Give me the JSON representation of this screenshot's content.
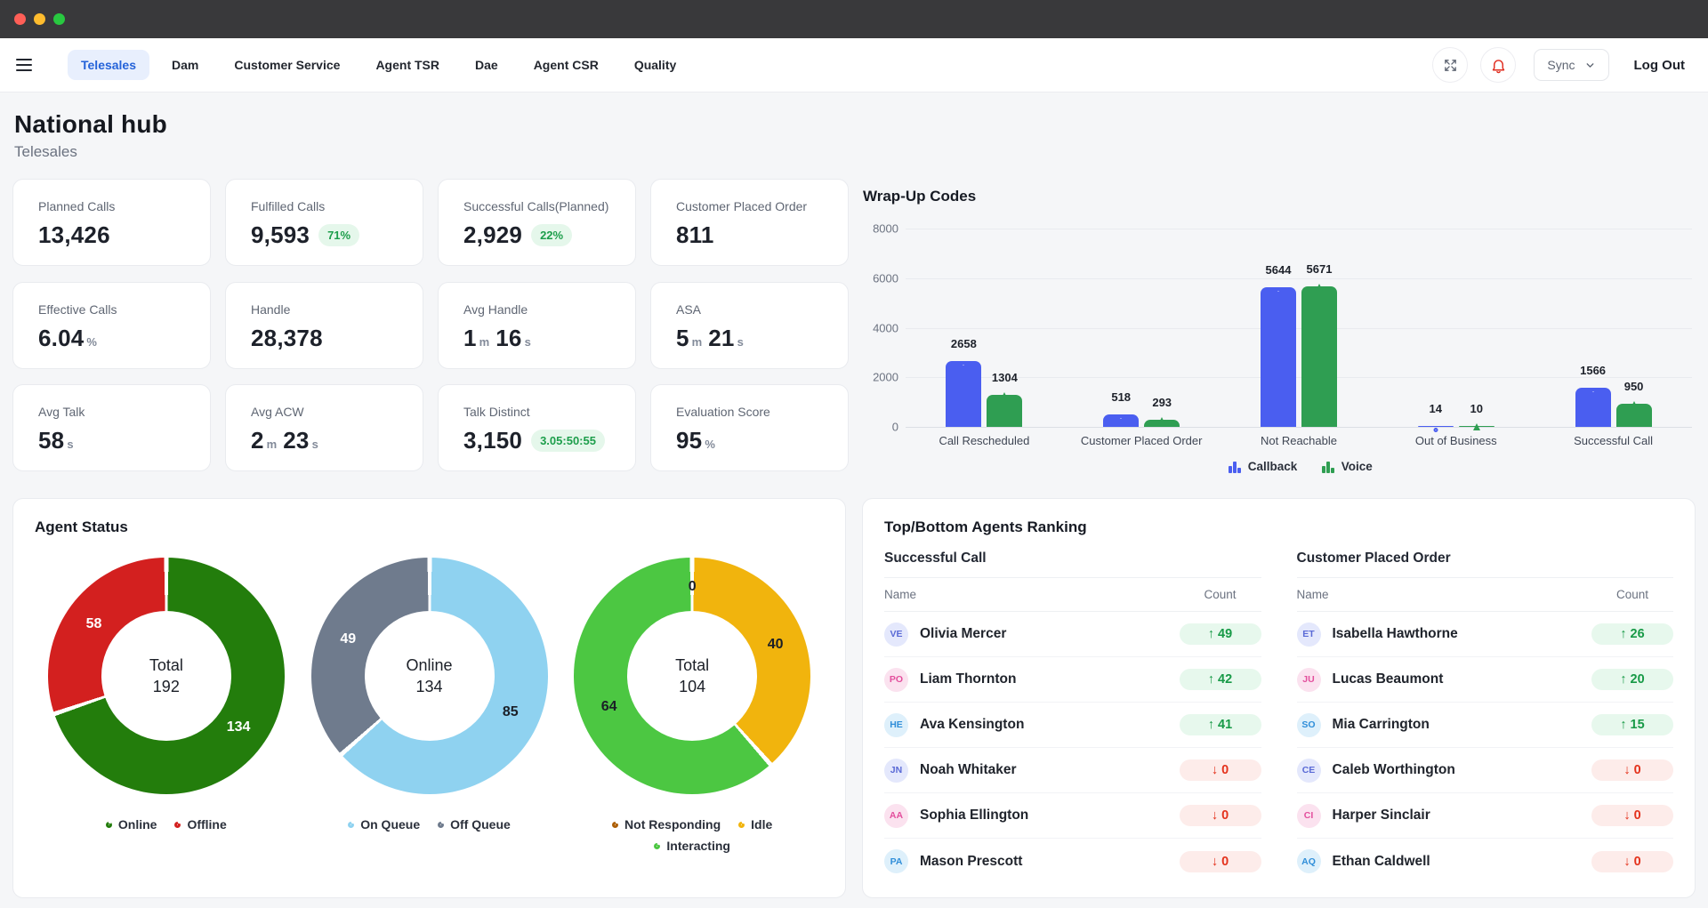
{
  "window": {
    "traffic_lights": [
      "#ff5f57",
      "#febc2e",
      "#28c840"
    ]
  },
  "nav": {
    "tabs": [
      {
        "label": "Telesales",
        "active": true
      },
      {
        "label": "Dam",
        "active": false
      },
      {
        "label": "Customer Service",
        "active": false
      },
      {
        "label": "Agent TSR",
        "active": false
      },
      {
        "label": "Dae",
        "active": false
      },
      {
        "label": "Agent CSR",
        "active": false
      },
      {
        "label": "Quality",
        "active": false
      }
    ],
    "sync_label": "Sync",
    "logout_label": "Log Out"
  },
  "header": {
    "title": "National hub",
    "subtitle": "Telesales"
  },
  "kpis": [
    {
      "label": "Planned Calls",
      "parts": [
        {
          "t": "13,426",
          "u": false
        }
      ],
      "badge": null
    },
    {
      "label": "Fulfilled Calls",
      "parts": [
        {
          "t": "9,593",
          "u": false
        }
      ],
      "badge": "71%"
    },
    {
      "label": "Successful Calls(Planned)",
      "parts": [
        {
          "t": "2,929",
          "u": false
        }
      ],
      "badge": "22%"
    },
    {
      "label": "Customer Placed Order",
      "parts": [
        {
          "t": "811",
          "u": false
        }
      ],
      "badge": null
    },
    {
      "label": "Effective Calls",
      "parts": [
        {
          "t": "6.04",
          "u": false
        },
        {
          "t": "%",
          "u": true
        }
      ],
      "badge": null
    },
    {
      "label": "Handle",
      "parts": [
        {
          "t": "28,378",
          "u": false
        }
      ],
      "badge": null
    },
    {
      "label": "Avg Handle",
      "parts": [
        {
          "t": "1",
          "u": false
        },
        {
          "t": "m",
          "u": true
        },
        {
          "t": "16",
          "u": false
        },
        {
          "t": "s",
          "u": true
        }
      ],
      "badge": null
    },
    {
      "label": "ASA",
      "parts": [
        {
          "t": "5",
          "u": false
        },
        {
          "t": "m",
          "u": true
        },
        {
          "t": "21",
          "u": false
        },
        {
          "t": "s",
          "u": true
        }
      ],
      "badge": null
    },
    {
      "label": "Avg Talk",
      "parts": [
        {
          "t": "58",
          "u": false
        },
        {
          "t": "s",
          "u": true
        }
      ],
      "badge": null
    },
    {
      "label": "Avg ACW",
      "parts": [
        {
          "t": "2",
          "u": false
        },
        {
          "t": "m",
          "u": true
        },
        {
          "t": "23",
          "u": false
        },
        {
          "t": "s",
          "u": true
        }
      ],
      "badge": null
    },
    {
      "label": "Talk Distinct",
      "parts": [
        {
          "t": "3,150",
          "u": false
        }
      ],
      "badge": "3.05:50:55"
    },
    {
      "label": "Evaluation Score",
      "parts": [
        {
          "t": "95",
          "u": false
        },
        {
          "t": "%",
          "u": true
        }
      ],
      "badge": null
    }
  ],
  "chart_data": {
    "type": "bar",
    "title": "Wrap-Up Codes",
    "categories": [
      "Call Rescheduled",
      "Customer Placed Order",
      "Not Reachable",
      "Out of Business",
      "Successful Call"
    ],
    "series": [
      {
        "name": "Callback",
        "color": "#4a5ef0",
        "marker": "circle",
        "values": [
          2658,
          518,
          5644,
          14,
          1566
        ]
      },
      {
        "name": "Voice",
        "color": "#2f9e52",
        "marker": "triangle",
        "values": [
          1304,
          293,
          5671,
          10,
          950
        ]
      }
    ],
    "xlabel": "",
    "ylabel": "",
    "ylim": [
      0,
      8000
    ],
    "yticks": [
      0,
      2000,
      4000,
      6000,
      8000
    ],
    "grid": true,
    "legend_position": "bottom"
  },
  "agent_status": {
    "title": "Agent Status",
    "donuts": [
      {
        "center_line1": "Total",
        "center_line2": "192",
        "slices": [
          {
            "label": "Online",
            "value": 134,
            "color": "#237d0c",
            "label_color": "#ffffff"
          },
          {
            "label": "Offline",
            "value": 58,
            "color": "#d3201f",
            "label_color": "#ffffff"
          }
        ]
      },
      {
        "center_line1": "Online",
        "center_line2": "134",
        "slices": [
          {
            "label": "On Queue",
            "value": 85,
            "color": "#8fd2f0",
            "label_color": "#1b1f27"
          },
          {
            "label": "Off Queue",
            "value": 49,
            "color": "#6f7b8d",
            "label_color": "#ffffff"
          }
        ]
      },
      {
        "center_line1": "Total",
        "center_line2": "104",
        "slices": [
          {
            "label": "Not Responding",
            "value": 0,
            "color": "#ad5f07",
            "label_color": "#1b1f27"
          },
          {
            "label": "Idle",
            "value": 40,
            "color": "#f1b40d",
            "label_color": "#1b1f27"
          },
          {
            "label": "Interacting",
            "value": 64,
            "color": "#4cc742",
            "label_color": "#1b1f27"
          }
        ]
      }
    ]
  },
  "ranking": {
    "title": "Top/Bottom Agents Ranking",
    "tables": [
      {
        "subtitle": "Successful Call",
        "name_header": "Name",
        "count_header": "Count",
        "rows": [
          {
            "initials": "VE",
            "avatar": "indigo",
            "name": "Olivia Mercer",
            "count": 49,
            "direction": "up"
          },
          {
            "initials": "PO",
            "avatar": "pink",
            "name": "Liam Thornton",
            "count": 42,
            "direction": "up"
          },
          {
            "initials": "HE",
            "avatar": "blue",
            "name": "Ava Kensington",
            "count": 41,
            "direction": "up"
          },
          {
            "initials": "JN",
            "avatar": "indigo",
            "name": "Noah Whitaker",
            "count": 0,
            "direction": "down"
          },
          {
            "initials": "AA",
            "avatar": "pink",
            "name": "Sophia Ellington",
            "count": 0,
            "direction": "down"
          },
          {
            "initials": "PA",
            "avatar": "blue",
            "name": "Mason Prescott",
            "count": 0,
            "direction": "down"
          }
        ]
      },
      {
        "subtitle": "Customer Placed Order",
        "name_header": "Name",
        "count_header": "Count",
        "rows": [
          {
            "initials": "ET",
            "avatar": "indigo",
            "name": "Isabella Hawthorne",
            "count": 26,
            "direction": "up"
          },
          {
            "initials": "JU",
            "avatar": "pink",
            "name": "Lucas Beaumont",
            "count": 20,
            "direction": "up"
          },
          {
            "initials": "SO",
            "avatar": "blue",
            "name": "Mia Carrington",
            "count": 15,
            "direction": "up"
          },
          {
            "initials": "CE",
            "avatar": "indigo",
            "name": "Caleb Worthington",
            "count": 0,
            "direction": "down"
          },
          {
            "initials": "CI",
            "avatar": "pink",
            "name": "Harper Sinclair",
            "count": 0,
            "direction": "down"
          },
          {
            "initials": "AQ",
            "avatar": "blue",
            "name": "Ethan Caldwell",
            "count": 0,
            "direction": "down"
          }
        ]
      }
    ]
  }
}
